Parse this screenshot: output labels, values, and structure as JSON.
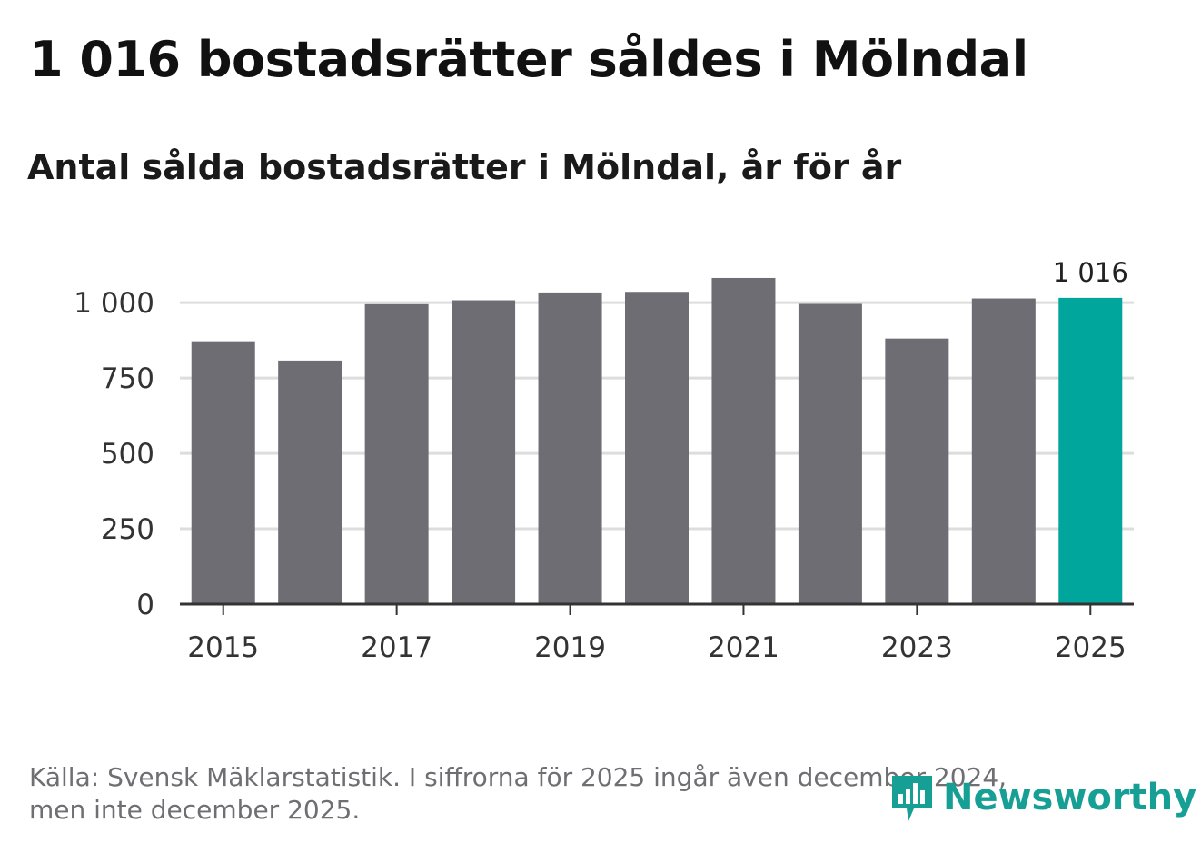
{
  "header": {
    "title": "1 016 bostadsrätter såldes i Mölndal",
    "subtitle": "Antal sålda bostadsrätter i Mölndal, år för år"
  },
  "footer": {
    "line1": "Källa: Svensk Mäklarstatistik. I siffrorna för 2025 ingår även december 2024,",
    "line2": "men inte december 2025."
  },
  "brand": {
    "name": "Newsworthy",
    "color": "#169f95"
  },
  "chart_data": {
    "type": "bar",
    "title": "1 016 bostadsrätter såldes i Mölndal",
    "subtitle": "Antal sålda bostadsrätter i Mölndal, år för år",
    "xlabel": "",
    "ylabel": "",
    "categories": [
      "2015",
      "2016",
      "2017",
      "2018",
      "2019",
      "2020",
      "2021",
      "2022",
      "2023",
      "2024",
      "2025"
    ],
    "values": [
      872,
      808,
      995,
      1008,
      1034,
      1036,
      1082,
      996,
      881,
      1014,
      1016
    ],
    "x_ticks": [
      "2015",
      "2017",
      "2019",
      "2021",
      "2023",
      "2025"
    ],
    "ylim": [
      0,
      1100
    ],
    "y_ticks": [
      0,
      250,
      500,
      750,
      1000
    ],
    "y_tick_labels": [
      "0",
      "250",
      "500",
      "750",
      "1 000"
    ],
    "annotation": {
      "category": "2025",
      "label": "1 016"
    },
    "grid": true,
    "colors": {
      "bar": "#6e6d73",
      "highlight": "#00a59b",
      "grid": "#dddddd",
      "axis": "#333333"
    }
  }
}
